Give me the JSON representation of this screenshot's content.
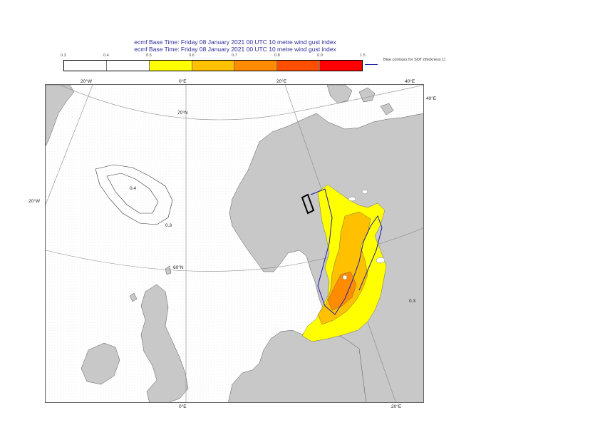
{
  "titles": {
    "line1": "ecmf  Base Time: Friday 08 January 2021 00 UTC 10 metre wind gust index",
    "line2": "ecmf  Base Time: Friday 08 January 2021 00 UTC 10 metre wind gust index"
  },
  "legend": {
    "ticks": [
      "0.3",
      "0.4",
      "0.5",
      "0.6",
      "0.7",
      "0.8",
      "0.9",
      "1.5"
    ],
    "colors": [
      "#ffffff",
      "#ffffff",
      "#ffff00",
      "#ffc000",
      "#ff8c00",
      "#ff4e00",
      "#ff0000"
    ],
    "sot_label": "Blue contours for SOT (thickness 1)"
  },
  "map_labels": {
    "top_20w": "20°W",
    "top_0e": "0°E",
    "top_20e": "20°E",
    "top_40e": "40°E",
    "right_40e": "40°E",
    "lat_70n": "70°N",
    "lat_60n": "60°N",
    "left_20w": "20°W",
    "bottom_0e": "0°E",
    "bottom_20e": "20°E"
  },
  "contour_labels": {
    "iceland_04": "0.4",
    "iceland_03": "0.3",
    "baltic_03": "0.3"
  },
  "colors": {
    "land": "#c8c8c8",
    "sea": "#ffffff",
    "yellow": "#ffff00",
    "orange": "#ffc000",
    "dark_orange": "#ff8c00",
    "sot_blue": "#1a1aa8"
  }
}
